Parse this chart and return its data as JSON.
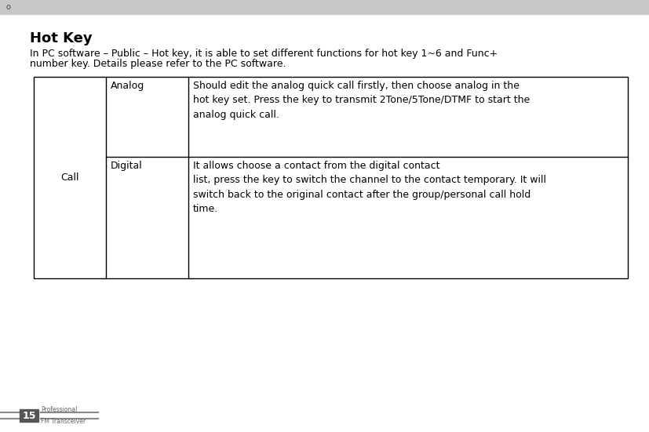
{
  "page_num": "15",
  "header_bg": "#c8c8c8",
  "header_circle_text": "o",
  "title": "Hot Key",
  "intro_line1": "In PC software – Public – Hot key, it is able to set different functions for hot key 1~6 and Func+",
  "intro_line2": "number key. Details please refer to the PC software.",
  "table_col1": "Call",
  "table_rows": [
    {
      "sub": "Analog",
      "desc": "Should edit the analog quick call firstly, then choose analog in the\nhot key set. Press the key to transmit 2Tone/5Tone/DTMF to start the\nanalog quick call."
    },
    {
      "sub": "Digital",
      "desc": "It allows choose a contact from the digital contact\nlist, press the key to switch the channel to the contact temporary. It will\nswitch back to the original contact after the group/personal call hold\ntime."
    }
  ],
  "footer_box_color": "#555555",
  "footer_line_color": "#888888",
  "bg_color": "#ffffff",
  "text_color": "#000000",
  "title_fontsize": 13,
  "body_fontsize": 9,
  "table_fontsize": 9,
  "footer_fontsize": 6
}
